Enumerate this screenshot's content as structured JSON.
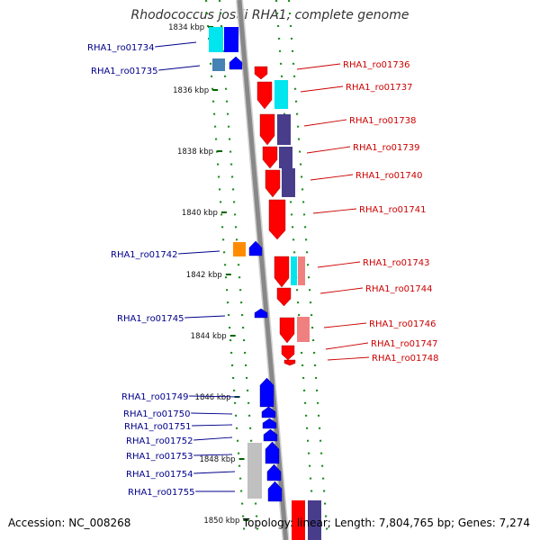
{
  "title": "Rhodococcus jostii RHA1, complete genome",
  "accession": "Accession: NC_008268",
  "topology": "Topology: linear; Length: 7,804,765 bp; Genes: 7,274",
  "kbp_ticks": [
    "1834 kbp",
    "1836 kbp",
    "1838 kbp",
    "1840 kbp",
    "1842 kbp",
    "1844 kbp",
    "1846 kbp",
    "1848 kbp",
    "1850 kbp"
  ],
  "left_genes": [
    "RHA1_ro01734",
    "RHA1_ro01735",
    "RHA1_ro01742",
    "RHA1_ro01745",
    "RHA1_ro01749",
    "RHA1_ro01750",
    "RHA1_ro01751",
    "RHA1_ro01752",
    "RHA1_ro01753",
    "RHA1_ro01754",
    "RHA1_ro01755"
  ],
  "right_genes": [
    "RHA1_ro01736",
    "RHA1_ro01737",
    "RHA1_ro01738",
    "RHA1_ro01739",
    "RHA1_ro01740",
    "RHA1_ro01741",
    "RHA1_ro01743",
    "RHA1_ro01744",
    "RHA1_ro01746",
    "RHA1_ro01747",
    "RHA1_ro01748"
  ],
  "colors": {
    "left_label": "#00008b",
    "right_label": "#cc0000",
    "forward_gene": "#ff0000",
    "reverse_gene": "#0000ff",
    "backbone": "#888888",
    "track_dots": "#228b22",
    "cyan_feature": "#00e5ee",
    "purple_feature": "#483d8b",
    "orange_feature": "#ff8c00",
    "pink_feature": "#f08080",
    "gray_feature": "#c0c0c0",
    "steel_feature": "#4682b4"
  }
}
